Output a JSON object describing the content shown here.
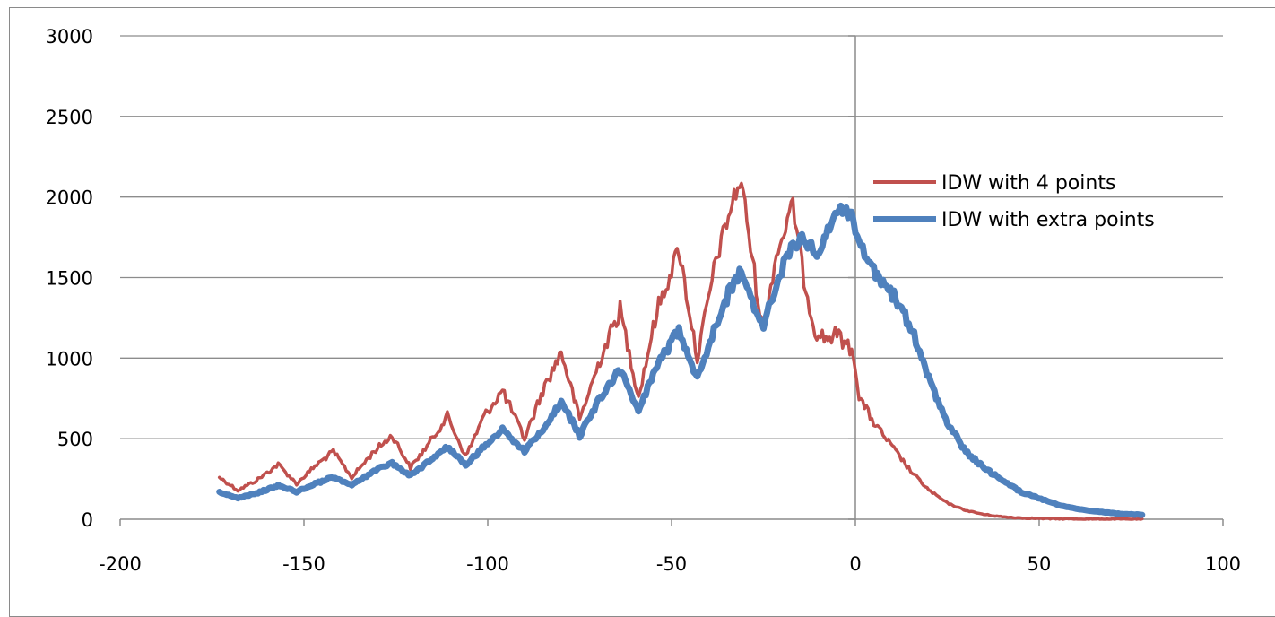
{
  "chart_data": {
    "type": "line",
    "title": "",
    "xlabel": "",
    "ylabel": "",
    "xlim": [
      -200,
      100
    ],
    "ylim": [
      0,
      3000
    ],
    "x_ticks": [
      -200,
      -150,
      -100,
      -50,
      0,
      50,
      100
    ],
    "y_ticks": [
      0,
      500,
      1000,
      1500,
      2000,
      2500,
      3000
    ],
    "x_tick_labels": [
      "-200",
      "-150",
      "-100",
      "-50",
      "0",
      "50",
      "100"
    ],
    "y_tick_labels": [
      "0",
      "500",
      "1000",
      "1500",
      "2000",
      "2500",
      "3000"
    ],
    "grid": "horizontal",
    "legend_position": "right",
    "series": [
      {
        "name": "IDW with  4 points",
        "color": "#c0504d",
        "x": [
          -173,
          -168,
          -163,
          -157,
          -152,
          -147,
          -142,
          -137,
          -131,
          -126,
          -121,
          -116,
          -111,
          -106,
          -101,
          -96,
          -90,
          -85,
          -80,
          -75,
          -69,
          -64,
          -59,
          -54,
          -48,
          -43,
          -38,
          -33,
          -31,
          -27,
          -25,
          -22,
          -17,
          -14,
          -11,
          -8,
          -5,
          -2,
          -1,
          0,
          1,
          3,
          5,
          10,
          15,
          20,
          25,
          30,
          35,
          40,
          45,
          50,
          55,
          60,
          65,
          70,
          75,
          78
        ],
        "y": [
          260,
          180,
          240,
          340,
          220,
          330,
          420,
          260,
          420,
          520,
          320,
          470,
          640,
          390,
          640,
          800,
          500,
          800,
          1040,
          620,
          1020,
          1300,
          760,
          1290,
          1680,
          1000,
          1600,
          2000,
          2100,
          1450,
          1150,
          1600,
          1950,
          1500,
          1170,
          1120,
          1150,
          1070,
          1050,
          960,
          760,
          680,
          600,
          450,
          300,
          180,
          100,
          55,
          30,
          15,
          8,
          5,
          3,
          2,
          1,
          1,
          1,
          0
        ]
      },
      {
        "name": "IDW with  extra points",
        "color": "#4f81bd",
        "x": [
          -173,
          -168,
          -163,
          -157,
          -152,
          -147,
          -142,
          -137,
          -131,
          -126,
          -121,
          -116,
          -111,
          -106,
          -101,
          -96,
          -90,
          -85,
          -80,
          -75,
          -69,
          -64,
          -59,
          -54,
          -48,
          -43,
          -38,
          -33,
          -31,
          -27,
          -25,
          -20,
          -17,
          -14,
          -11,
          -8,
          -6,
          -3,
          -1,
          1,
          3,
          6,
          10,
          15,
          20,
          25,
          30,
          35,
          40,
          45,
          50,
          55,
          60,
          65,
          70,
          75,
          78
        ],
        "y": [
          170,
          130,
          160,
          210,
          170,
          220,
          260,
          210,
          300,
          350,
          270,
          360,
          450,
          340,
          450,
          560,
          420,
          560,
          730,
          520,
          770,
          930,
          670,
          950,
          1180,
          880,
          1210,
          1480,
          1530,
          1290,
          1200,
          1550,
          1700,
          1750,
          1650,
          1750,
          1900,
          1910,
          1870,
          1750,
          1600,
          1500,
          1400,
          1200,
          870,
          600,
          420,
          320,
          240,
          170,
          130,
          90,
          65,
          50,
          38,
          30,
          28
        ]
      }
    ]
  }
}
